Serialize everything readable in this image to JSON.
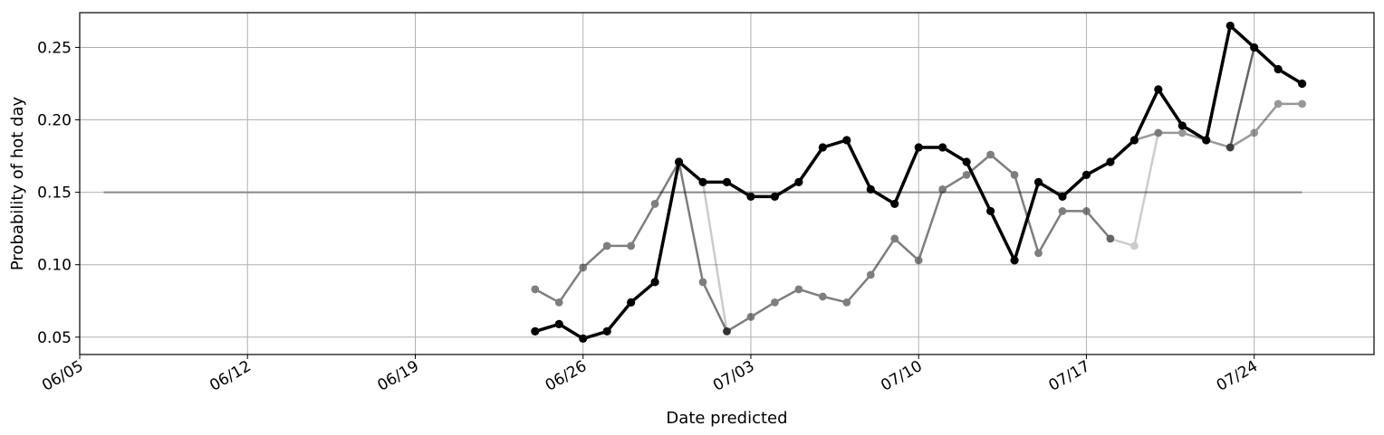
{
  "chart_data": {
    "type": "line",
    "title": "",
    "xlabel": "Date predicted",
    "ylabel": "Probability of hot day",
    "x_ticks": [
      "06/05",
      "06/12",
      "06/19",
      "06/26",
      "07/03",
      "07/10",
      "07/17",
      "07/24"
    ],
    "y_ticks": [
      "0.05",
      "0.10",
      "0.15",
      "0.20",
      "0.25"
    ],
    "xlim": [
      "2020-06-05",
      "2020-07-29"
    ],
    "ylim": [
      0.038,
      0.274
    ],
    "grid": true,
    "reference_line": {
      "y": 0.15,
      "x_start": "2020-06-06",
      "x_end": "2020-07-26",
      "color": "#888888"
    },
    "series": [
      {
        "color": "#000000",
        "opacity": 1.0,
        "linewidth": 3.5,
        "points": [
          [
            "2020-06-24",
            0.054
          ],
          [
            "2020-06-25",
            0.059
          ],
          [
            "2020-06-26",
            0.049
          ],
          [
            "2020-06-27",
            0.054
          ],
          [
            "2020-06-28",
            0.074
          ],
          [
            "2020-06-29",
            0.088
          ],
          [
            "2020-06-30",
            0.171
          ],
          [
            "2020-07-01",
            0.157
          ],
          [
            "2020-07-02",
            0.157
          ],
          [
            "2020-07-03",
            0.147
          ],
          [
            "2020-07-04",
            0.147
          ],
          [
            "2020-07-05",
            0.157
          ],
          [
            "2020-07-06",
            0.181
          ],
          [
            "2020-07-07",
            0.186
          ],
          [
            "2020-07-08",
            0.152
          ],
          [
            "2020-07-09",
            0.142
          ],
          [
            "2020-07-10",
            0.181
          ],
          [
            "2020-07-11",
            0.181
          ],
          [
            "2020-07-12",
            0.171
          ],
          [
            "2020-07-13",
            0.137
          ],
          [
            "2020-07-14",
            0.103
          ],
          [
            "2020-07-15",
            0.157
          ],
          [
            "2020-07-16",
            0.147
          ],
          [
            "2020-07-17",
            0.162
          ],
          [
            "2020-07-18",
            0.171
          ],
          [
            "2020-07-19",
            0.186
          ],
          [
            "2020-07-20",
            0.221
          ],
          [
            "2020-07-21",
            0.196
          ],
          [
            "2020-07-22",
            0.186
          ],
          [
            "2020-07-23",
            0.265
          ],
          [
            "2020-07-24",
            0.25
          ],
          [
            "2020-07-25",
            0.235
          ],
          [
            "2020-07-26",
            0.225
          ]
        ]
      },
      {
        "color": "#000000",
        "opacity": 0.5,
        "linewidth": 2.5,
        "points": [
          [
            "2020-06-24",
            0.083
          ],
          [
            "2020-06-25",
            0.074
          ],
          [
            "2020-06-26",
            0.098
          ],
          [
            "2020-06-27",
            0.113
          ],
          [
            "2020-06-28",
            0.113
          ],
          [
            "2020-06-29",
            0.142
          ],
          [
            "2020-06-30",
            0.171
          ],
          [
            "2020-07-01",
            0.088
          ],
          [
            "2020-07-02",
            0.054
          ]
        ]
      },
      {
        "color": "#000000",
        "opacity": 0.2,
        "linewidth": 2.5,
        "points": [
          [
            "2020-07-01",
            0.157
          ],
          [
            "2020-07-02",
            0.054
          ]
        ]
      },
      {
        "color": "#000000",
        "opacity": 0.5,
        "linewidth": 2.5,
        "points": [
          [
            "2020-07-02",
            0.054
          ],
          [
            "2020-07-03",
            0.064
          ],
          [
            "2020-07-04",
            0.074
          ],
          [
            "2020-07-05",
            0.083
          ],
          [
            "2020-07-06",
            0.078
          ],
          [
            "2020-07-07",
            0.074
          ],
          [
            "2020-07-08",
            0.093
          ],
          [
            "2020-07-09",
            0.118
          ],
          [
            "2020-07-10",
            0.103
          ],
          [
            "2020-07-11",
            0.152
          ],
          [
            "2020-07-12",
            0.162
          ],
          [
            "2020-07-13",
            0.176
          ],
          [
            "2020-07-14",
            0.162
          ],
          [
            "2020-07-15",
            0.108
          ],
          [
            "2020-07-16",
            0.137
          ],
          [
            "2020-07-17",
            0.137
          ],
          [
            "2020-07-18",
            0.118
          ]
        ]
      },
      {
        "color": "#000000",
        "opacity": 0.2,
        "linewidth": 2.5,
        "points": [
          [
            "2020-07-18",
            0.118
          ],
          [
            "2020-07-19",
            0.113
          ],
          [
            "2020-07-20",
            0.191
          ]
        ]
      },
      {
        "color": "#000000",
        "opacity": 0.4,
        "linewidth": 2.5,
        "points": [
          [
            "2020-07-19",
            0.186
          ],
          [
            "2020-07-20",
            0.191
          ],
          [
            "2020-07-21",
            0.191
          ],
          [
            "2020-07-22",
            0.186
          ],
          [
            "2020-07-23",
            0.181
          ],
          [
            "2020-07-24",
            0.191
          ],
          [
            "2020-07-25",
            0.211
          ],
          [
            "2020-07-26",
            0.211
          ]
        ]
      },
      {
        "color": "#000000",
        "opacity": 0.6,
        "linewidth": 2.5,
        "points": [
          [
            "2020-07-23",
            0.181
          ],
          [
            "2020-07-24",
            0.25
          ]
        ]
      }
    ]
  }
}
